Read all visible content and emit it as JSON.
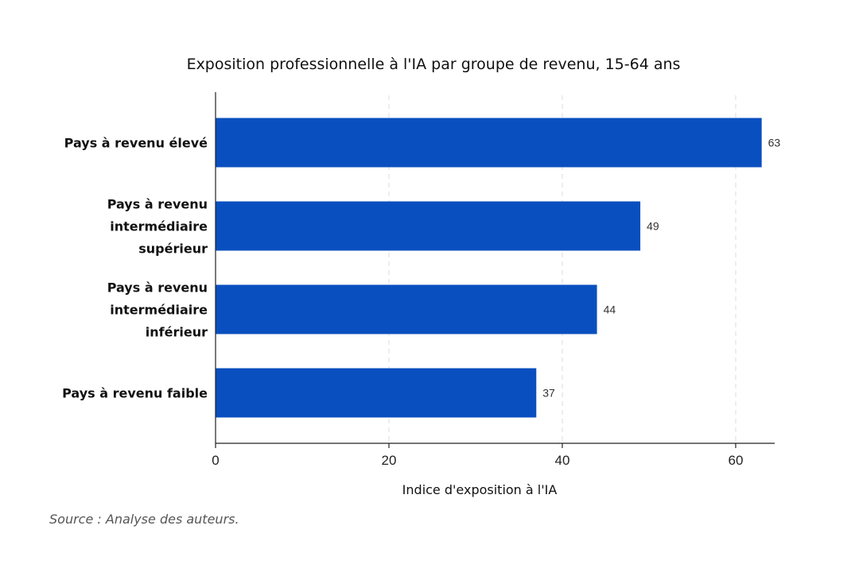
{
  "chart_data": {
    "type": "bar",
    "orientation": "horizontal",
    "title": "Exposition professionnelle à l'IA par groupe de revenu, 15-64 ans",
    "categories": [
      [
        "Pays à revenu élevé"
      ],
      [
        "Pays à revenu",
        "intermédiaire",
        "supérieur"
      ],
      [
        "Pays à revenu",
        "intermédiaire",
        "inférieur"
      ],
      [
        "Pays à revenu faible"
      ]
    ],
    "values": [
      63,
      49,
      44,
      37
    ],
    "value_labels": [
      "63",
      "49",
      "44",
      "37"
    ],
    "xlabel": "Indice d'exposition à l'IA",
    "ylabel": "",
    "xlim": [
      0,
      64.5
    ],
    "xticks": [
      0,
      20,
      40,
      60
    ],
    "xtick_labels": [
      "0",
      "20",
      "40",
      "60"
    ],
    "grid": "vertical dashed",
    "bar_color": "#0a4fbf"
  },
  "source": "Source : Analyse des auteurs."
}
